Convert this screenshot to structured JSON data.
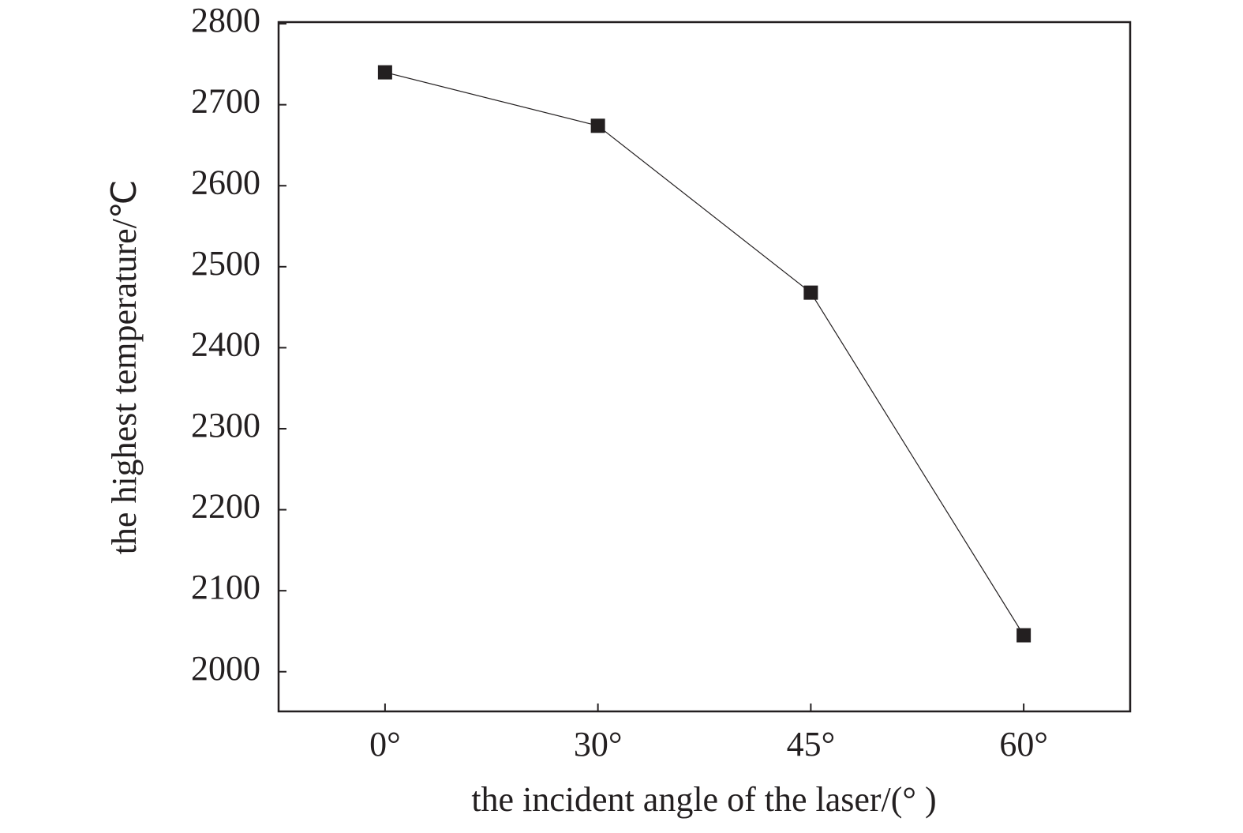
{
  "chart_data": {
    "type": "line",
    "x_label": "the incident angle of the laser/(° )",
    "y_label": "the highest temperature/℃",
    "categories": [
      "0°",
      "30°",
      "45°",
      "60°"
    ],
    "series": [
      {
        "name": "the highest temperature",
        "color": "#231f20",
        "values": [
          2740,
          2674,
          2468,
          2045
        ]
      }
    ],
    "ylim": [
      1951,
      2802
    ],
    "yticks": [
      2000,
      2100,
      2200,
      2300,
      2400,
      2500,
      2600,
      2700,
      2800
    ]
  }
}
